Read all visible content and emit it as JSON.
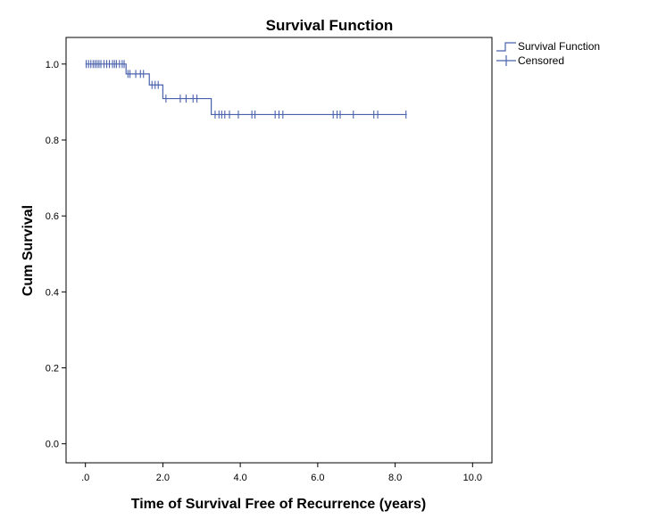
{
  "chart_data": {
    "type": "line",
    "title": "Survival Function",
    "xlabel": "Time of Survival Free of Recurrence (years)",
    "ylabel": "Cum Survival",
    "xlim": [
      -0.5,
      10.5
    ],
    "ylim": [
      -0.05,
      1.07
    ],
    "x_ticks": [
      0,
      2,
      4,
      6,
      8,
      10
    ],
    "x_tick_labels": [
      ".0",
      "2.0",
      "4.0",
      "6.0",
      "8.0",
      "10.0"
    ],
    "y_ticks": [
      0,
      0.2,
      0.4,
      0.6,
      0.8,
      1.0
    ],
    "y_tick_labels": [
      "0.0",
      "0.2",
      "0.4",
      "0.6",
      "0.8",
      "1.0"
    ],
    "legend": {
      "position": "top-right",
      "entries": [
        "Survival Function",
        "Censored"
      ]
    },
    "series": [
      {
        "name": "Survival Function",
        "color": "#4a62ad",
        "steps": [
          {
            "x": 0.0,
            "y": 1.0
          },
          {
            "x": 1.05,
            "y": 0.974
          },
          {
            "x": 1.65,
            "y": 0.945
          },
          {
            "x": 2.0,
            "y": 0.909
          },
          {
            "x": 3.25,
            "y": 0.867
          },
          {
            "x": 8.3,
            "y": 0.867
          }
        ]
      },
      {
        "name": "Censored",
        "color": "#4a62ad",
        "points": [
          {
            "x": 0.02,
            "y": 1.0
          },
          {
            "x": 0.08,
            "y": 1.0
          },
          {
            "x": 0.14,
            "y": 1.0
          },
          {
            "x": 0.2,
            "y": 1.0
          },
          {
            "x": 0.25,
            "y": 1.0
          },
          {
            "x": 0.3,
            "y": 1.0
          },
          {
            "x": 0.35,
            "y": 1.0
          },
          {
            "x": 0.4,
            "y": 1.0
          },
          {
            "x": 0.48,
            "y": 1.0
          },
          {
            "x": 0.55,
            "y": 1.0
          },
          {
            "x": 0.62,
            "y": 1.0
          },
          {
            "x": 0.7,
            "y": 1.0
          },
          {
            "x": 0.75,
            "y": 1.0
          },
          {
            "x": 0.8,
            "y": 1.0
          },
          {
            "x": 0.88,
            "y": 1.0
          },
          {
            "x": 0.95,
            "y": 1.0
          },
          {
            "x": 1.0,
            "y": 1.0
          },
          {
            "x": 1.1,
            "y": 0.974
          },
          {
            "x": 1.15,
            "y": 0.974
          },
          {
            "x": 1.3,
            "y": 0.974
          },
          {
            "x": 1.42,
            "y": 0.974
          },
          {
            "x": 1.5,
            "y": 0.974
          },
          {
            "x": 1.72,
            "y": 0.945
          },
          {
            "x": 1.8,
            "y": 0.945
          },
          {
            "x": 1.88,
            "y": 0.945
          },
          {
            "x": 2.08,
            "y": 0.909
          },
          {
            "x": 2.45,
            "y": 0.909
          },
          {
            "x": 2.6,
            "y": 0.909
          },
          {
            "x": 2.78,
            "y": 0.909
          },
          {
            "x": 2.88,
            "y": 0.909
          },
          {
            "x": 3.35,
            "y": 0.867
          },
          {
            "x": 3.45,
            "y": 0.867
          },
          {
            "x": 3.52,
            "y": 0.867
          },
          {
            "x": 3.6,
            "y": 0.867
          },
          {
            "x": 3.72,
            "y": 0.867
          },
          {
            "x": 3.95,
            "y": 0.867
          },
          {
            "x": 4.3,
            "y": 0.867
          },
          {
            "x": 4.38,
            "y": 0.867
          },
          {
            "x": 4.9,
            "y": 0.867
          },
          {
            "x": 5.0,
            "y": 0.867
          },
          {
            "x": 5.1,
            "y": 0.867
          },
          {
            "x": 6.4,
            "y": 0.867
          },
          {
            "x": 6.5,
            "y": 0.867
          },
          {
            "x": 6.58,
            "y": 0.867
          },
          {
            "x": 6.92,
            "y": 0.867
          },
          {
            "x": 7.45,
            "y": 0.867
          },
          {
            "x": 7.55,
            "y": 0.867
          },
          {
            "x": 8.28,
            "y": 0.867
          }
        ]
      }
    ]
  }
}
